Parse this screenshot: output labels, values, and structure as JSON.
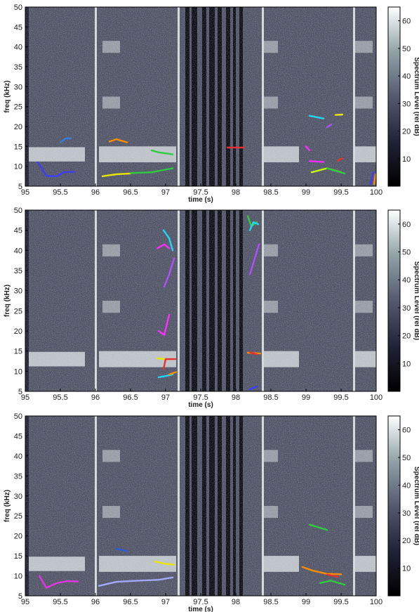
{
  "chart_data": [
    {
      "type": "heatmap",
      "xlabel": "time (s)",
      "ylabel": "freq (kHz)",
      "colorbar_label": "Spectrum Level (rel dB)",
      "xlim": [
        95,
        100
      ],
      "ylim": [
        5,
        50
      ],
      "clim": [
        0,
        65
      ],
      "x_ticks": [
        "95",
        "95.5",
        "96",
        "96.5",
        "97",
        "97.5",
        "98",
        "98.5",
        "99",
        "99.5",
        "100"
      ],
      "y_ticks": [
        "5",
        "10",
        "15",
        "20",
        "25",
        "30",
        "35",
        "40",
        "45",
        "50"
      ],
      "colorbar_ticks": [
        "10",
        "20",
        "30",
        "40",
        "50",
        "60"
      ],
      "contours": [
        {
          "color": "#3d3dff",
          "points": [
            [
              95.18,
              11
            ],
            [
              95.3,
              7.6
            ],
            [
              95.45,
              7.5
            ],
            [
              95.55,
              8.5
            ],
            [
              95.7,
              8.6
            ]
          ]
        },
        {
          "color": "#3a7bd5",
          "points": [
            [
              95.5,
              16
            ],
            [
              95.58,
              17
            ],
            [
              95.65,
              17
            ]
          ]
        },
        {
          "color": "#ff8c00",
          "points": [
            [
              96.2,
              16.2
            ],
            [
              96.3,
              16.8
            ],
            [
              96.45,
              16
            ]
          ]
        },
        {
          "color": "#2ecc40",
          "points": [
            [
              96.8,
              14
            ],
            [
              96.9,
              13.5
            ],
            [
              97.1,
              13
            ]
          ]
        },
        {
          "color": "#e6e600",
          "points": [
            [
              96.1,
              7.5
            ],
            [
              96.3,
              8
            ],
            [
              96.5,
              8.2
            ]
          ]
        },
        {
          "color": "#2ecc40",
          "points": [
            [
              96.5,
              8.3
            ],
            [
              96.8,
              8.5
            ],
            [
              97.1,
              9.5
            ]
          ]
        },
        {
          "color": "#e33232",
          "points": [
            [
              97.88,
              14.7
            ],
            [
              98.12,
              14.7
            ]
          ]
        },
        {
          "color": "#ff2dff",
          "points": [
            [
              99.0,
              15
            ],
            [
              99.05,
              14
            ]
          ]
        },
        {
          "color": "#24d6f0",
          "points": [
            [
              99.05,
              22.7
            ],
            [
              99.25,
              22
            ]
          ]
        },
        {
          "color": "#e6e600",
          "points": [
            [
              99.42,
              22.9
            ],
            [
              99.52,
              23
            ]
          ]
        },
        {
          "color": "#b34dff",
          "points": [
            [
              99.3,
              19.8
            ],
            [
              99.36,
              20.5
            ]
          ]
        },
        {
          "color": "#ff2dff",
          "points": [
            [
              99.05,
              11.3
            ],
            [
              99.25,
              11.1
            ]
          ]
        },
        {
          "color": "#e33232",
          "points": [
            [
              99.45,
              11.4
            ],
            [
              99.52,
              12
            ]
          ]
        },
        {
          "color": "#c8ff00",
          "points": [
            [
              99.08,
              8.5
            ],
            [
              99.3,
              9.5
            ],
            [
              99.5,
              8.5
            ]
          ]
        },
        {
          "color": "#2ecc40",
          "points": [
            [
              99.3,
              9.5
            ],
            [
              99.55,
              8.2
            ]
          ]
        },
        {
          "color": "#3d3dff",
          "points": [
            [
              99.92,
              5.5
            ],
            [
              99.96,
              8.5
            ]
          ]
        },
        {
          "color": "#ff8c00",
          "points": [
            [
              99.97,
              5.5
            ],
            [
              99.99,
              8
            ]
          ]
        }
      ]
    },
    {
      "type": "heatmap",
      "xlabel": "time (s)",
      "ylabel": "freq (kHz)",
      "colorbar_label": "Spectrum Level (rel dB)",
      "xlim": [
        95,
        100
      ],
      "ylim": [
        5,
        50
      ],
      "clim": [
        0,
        65
      ],
      "x_ticks": [
        "95",
        "95.5",
        "96",
        "96.5",
        "97",
        "97.5",
        "98",
        "98.5",
        "99",
        "99.5",
        "100"
      ],
      "y_ticks": [
        "5",
        "10",
        "15",
        "20",
        "25",
        "30",
        "35",
        "40",
        "45",
        "50"
      ],
      "colorbar_ticks": [
        "10",
        "20",
        "30",
        "40",
        "50",
        "60"
      ],
      "contours": [
        {
          "color": "#24d6f0",
          "points": [
            [
              96.97,
              45
            ],
            [
              97.05,
              43
            ],
            [
              97.1,
              40
            ]
          ]
        },
        {
          "color": "#ff2dff",
          "points": [
            [
              96.88,
              40.5
            ],
            [
              96.98,
              41.5
            ],
            [
              97.05,
              40.5
            ]
          ]
        },
        {
          "color": "#b34dff",
          "points": [
            [
              96.98,
              31
            ],
            [
              97.05,
              34
            ],
            [
              97.12,
              38
            ]
          ]
        },
        {
          "color": "#ff2dff",
          "points": [
            [
              96.9,
              20
            ],
            [
              96.98,
              19
            ],
            [
              97.05,
              24
            ]
          ]
        },
        {
          "color": "#e6e600",
          "points": [
            [
              96.88,
              13.2
            ],
            [
              97.0,
              13
            ],
            [
              97.12,
              13
            ]
          ]
        },
        {
          "color": "#e33232",
          "points": [
            [
              96.97,
              10.5
            ],
            [
              97.0,
              13
            ],
            [
              97.14,
              13
            ]
          ]
        },
        {
          "color": "#3d3dff",
          "points": [
            [
              96.9,
              8.5
            ],
            [
              97.05,
              9
            ]
          ]
        },
        {
          "color": "#24d6f0",
          "points": [
            [
              96.9,
              8.5
            ],
            [
              97.0,
              8.8
            ],
            [
              97.1,
              9.2
            ]
          ]
        },
        {
          "color": "#ff8c00",
          "points": [
            [
              97.05,
              9.2
            ],
            [
              97.15,
              9.8
            ]
          ]
        },
        {
          "color": "#2ecc40",
          "points": [
            [
              98.17,
              48.5
            ],
            [
              98.22,
              46
            ],
            [
              98.3,
              47
            ]
          ]
        },
        {
          "color": "#24d6f0",
          "points": [
            [
              98.2,
              45
            ],
            [
              98.25,
              47
            ],
            [
              98.32,
              46.5
            ]
          ]
        },
        {
          "color": "#b34dff",
          "points": [
            [
              98.2,
              34
            ],
            [
              98.27,
              38
            ],
            [
              98.33,
              41.5
            ]
          ]
        },
        {
          "color": "#ff8c00",
          "points": [
            [
              98.17,
              14.6
            ],
            [
              98.35,
              14.4
            ]
          ]
        },
        {
          "color": "#e33232",
          "points": [
            [
              98.2,
              14.7
            ],
            [
              98.3,
              14.2
            ]
          ]
        },
        {
          "color": "#3d3dff",
          "points": [
            [
              98.2,
              5.5
            ],
            [
              98.3,
              6.2
            ]
          ]
        }
      ]
    },
    {
      "type": "heatmap",
      "xlabel": "time (s)",
      "ylabel": "freq (kHz)",
      "colorbar_label": "Spectrum Level (rel dB)",
      "xlim": [
        95,
        100
      ],
      "ylim": [
        5,
        50
      ],
      "clim": [
        0,
        65
      ],
      "x_ticks": [
        "95",
        "95.5",
        "96",
        "96.5",
        "97",
        "97.5",
        "98",
        "98.5",
        "99",
        "99.5",
        "100"
      ],
      "y_ticks": [
        "5",
        "10",
        "15",
        "20",
        "25",
        "30",
        "35",
        "40",
        "45",
        "50"
      ],
      "colorbar_ticks": [
        "10",
        "20",
        "30",
        "40",
        "50",
        "60"
      ],
      "contours": [
        {
          "color": "#e633e6",
          "points": [
            [
              95.2,
              10
            ],
            [
              95.3,
              7
            ],
            [
              95.45,
              8.2
            ],
            [
              95.6,
              8.7
            ],
            [
              95.75,
              8.6
            ]
          ]
        },
        {
          "color": "#2c5ad8",
          "points": [
            [
              96.3,
              16.8
            ],
            [
              96.45,
              16.2
            ]
          ]
        },
        {
          "color": "#e6e600",
          "points": [
            [
              96.85,
              13.6
            ],
            [
              97.0,
              13
            ],
            [
              97.12,
              12.8
            ]
          ]
        },
        {
          "color": "#a4a8ff",
          "points": [
            [
              96.05,
              7.5
            ],
            [
              96.3,
              8.5
            ],
            [
              96.6,
              8.8
            ],
            [
              96.9,
              9
            ],
            [
              97.1,
              9.6
            ]
          ]
        },
        {
          "color": "#2ecc40",
          "points": [
            [
              99.05,
              22.8
            ],
            [
              99.3,
              21.5
            ]
          ]
        },
        {
          "color": "#ff8c00",
          "points": [
            [
              98.95,
              12.2
            ],
            [
              99.1,
              11.3
            ],
            [
              99.3,
              10.5
            ],
            [
              99.5,
              10.4
            ]
          ]
        },
        {
          "color": "#e33232",
          "points": [
            [
              99.3,
              10.3
            ],
            [
              99.45,
              9.8
            ]
          ]
        },
        {
          "color": "#2ecc40",
          "points": [
            [
              99.2,
              8.2
            ],
            [
              99.35,
              8.8
            ],
            [
              99.55,
              7.8
            ]
          ]
        }
      ]
    }
  ]
}
